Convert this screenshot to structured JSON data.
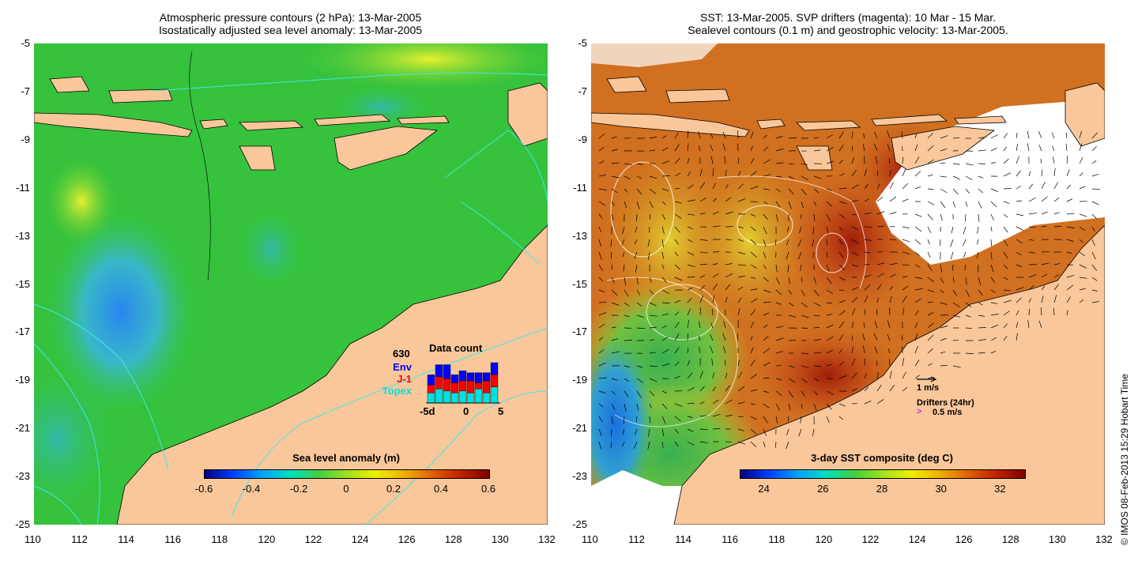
{
  "left_panel": {
    "title_line1": "Atmospheric pressure contours (2 hPa): 13-Mar-2005",
    "title_line2": "Isostatically adjusted sea level anomaly: 13-Mar-2005",
    "colorbar": {
      "label": "Sea level anomaly (m)",
      "ticks": [
        "-0.6",
        "-0.4",
        "-0.2",
        "0",
        "0.2",
        "0.4",
        "0.6"
      ]
    },
    "inset": {
      "title": "Data count",
      "total": "630",
      "legend": [
        {
          "name": "Env",
          "color": "#0000ff"
        },
        {
          "name": "J-1",
          "color": "#ff0000"
        },
        {
          "name": "Topex",
          "color": "#00e0e0"
        }
      ],
      "x_ticks": [
        "-5d",
        "0",
        "5"
      ],
      "bars": [
        {
          "topex": 0.25,
          "j1": 0.2,
          "env": 0.25
        },
        {
          "topex": 0.35,
          "j1": 0.3,
          "env": 0.3
        },
        {
          "topex": 0.3,
          "j1": 0.3,
          "env": 0.35
        },
        {
          "topex": 0.25,
          "j1": 0.25,
          "env": 0.2
        },
        {
          "topex": 0.3,
          "j1": 0.25,
          "env": 0.25
        },
        {
          "topex": 0.25,
          "j1": 0.3,
          "env": 0.2
        },
        {
          "topex": 0.35,
          "j1": 0.15,
          "env": 0.25
        },
        {
          "topex": 0.25,
          "j1": 0.3,
          "env": 0.2
        },
        {
          "topex": 0.4,
          "j1": 0.3,
          "env": 0.3
        }
      ]
    }
  },
  "right_panel": {
    "title_line1": "SST: 13-Mar-2005. SVP drifters (magenta): 10 Mar - 15 Mar.",
    "title_line2": "Sealevel contours (0.1 m) and geostrophic velocity: 13-Mar-2005.",
    "colorbar": {
      "label": "3-day SST composite (deg C)",
      "ticks": [
        "24",
        "26",
        "28",
        "30",
        "32"
      ]
    },
    "velocity_legend": "1 m/s",
    "drifters_legend_title": "Drifters (24hr)",
    "drifters_legend_value": "0.5 m/s",
    "drifter_symbol": ">"
  },
  "axes": {
    "y_ticks": [
      "-5",
      "-7",
      "-9",
      "-11",
      "-13",
      "-15",
      "-17",
      "-19",
      "-21",
      "-23",
      "-25"
    ],
    "x_ticks": [
      "110",
      "112",
      "114",
      "116",
      "118",
      "120",
      "122",
      "124",
      "126",
      "128",
      "130",
      "132"
    ]
  },
  "credit": "© IMOS 08-Feb-2013 15:29 Hobart Time",
  "colors": {
    "land": "#f9c79a",
    "ocean_green": "#33c733",
    "sst_warm": "#d8721c",
    "sst_hot": "#a8240c"
  }
}
